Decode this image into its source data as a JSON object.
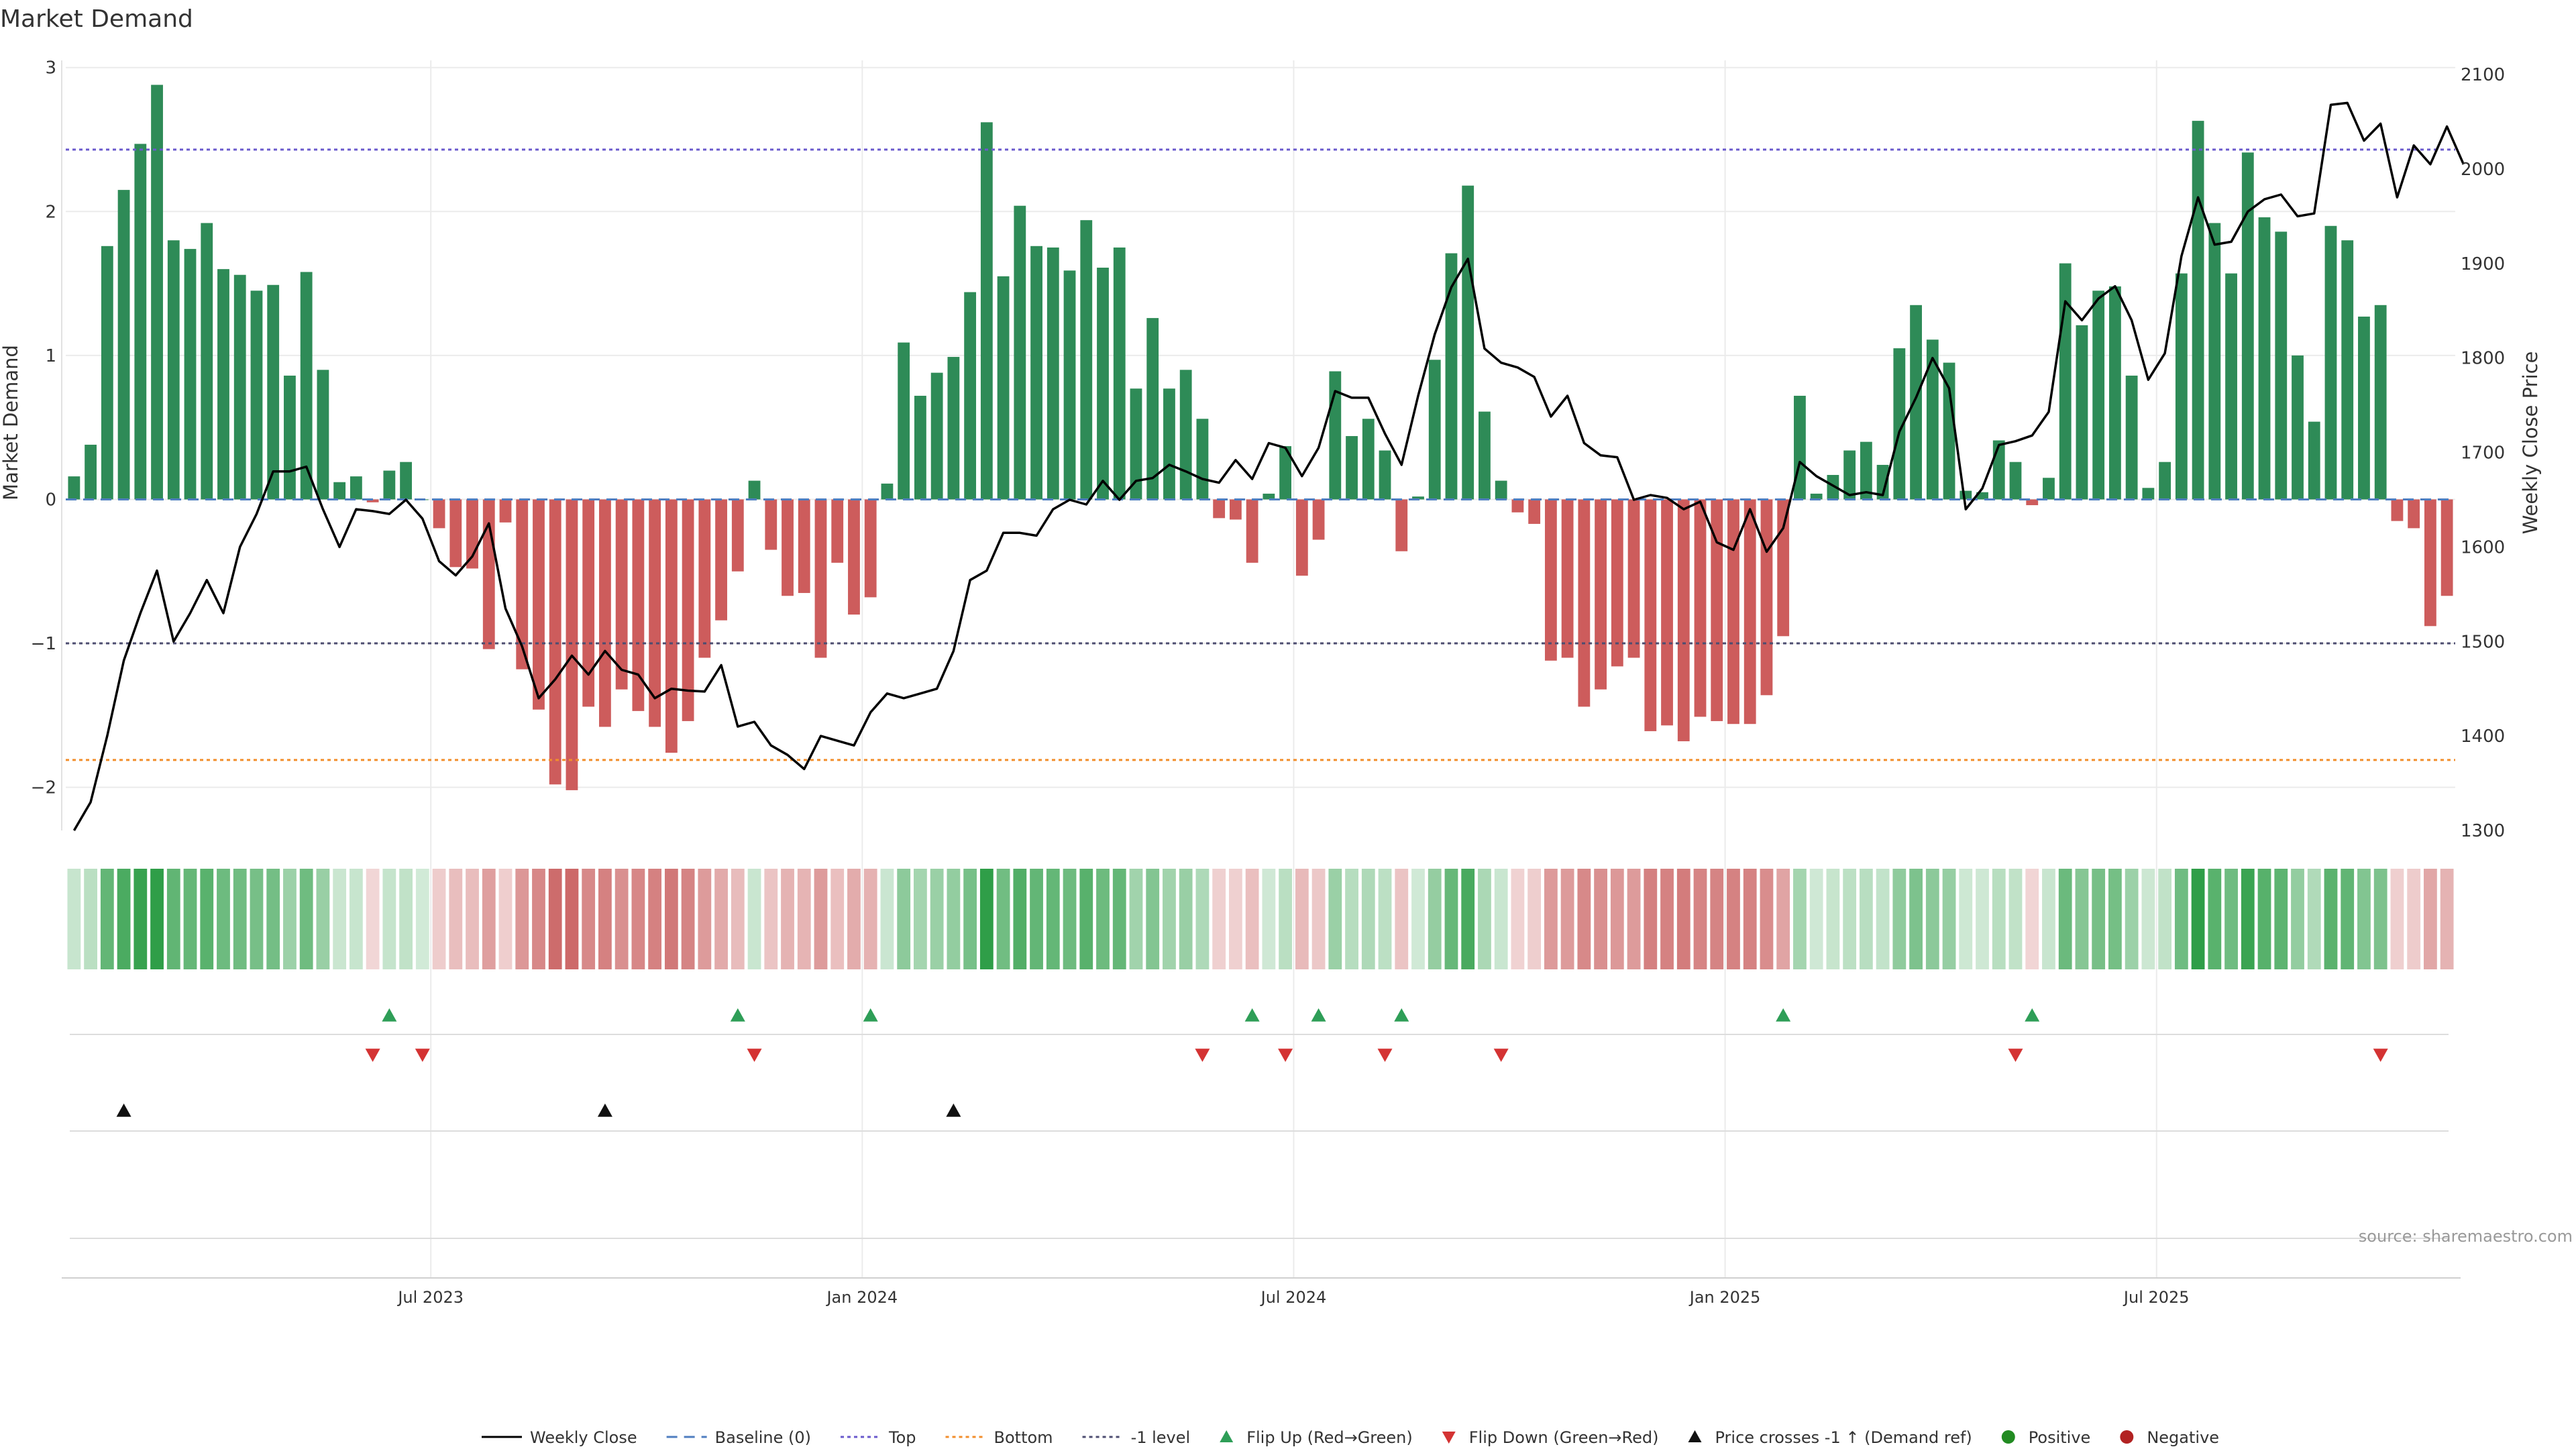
{
  "chart_data": {
    "type": "bar",
    "title": "Market Demand",
    "ylabel": "Market Demand",
    "y2label": "Weekly Close Price",
    "ylim": [
      -2.3,
      3.05
    ],
    "y2lim": [
      1300,
      2115
    ],
    "yticks": [
      {
        "v": -2,
        "label": "−2"
      },
      {
        "v": -1,
        "label": "−1"
      },
      {
        "v": 0,
        "label": "0"
      },
      {
        "v": 1,
        "label": "1"
      },
      {
        "v": 2,
        "label": "2"
      },
      {
        "v": 3,
        "label": "3"
      }
    ],
    "y2ticks": [
      1300,
      1400,
      1500,
      1600,
      1700,
      1800,
      1900,
      2000,
      2100
    ],
    "top_level": 2.43,
    "bottom_level": -1.81,
    "minus_one_level": -1,
    "n_weeks": 144,
    "xtick_labels": [
      {
        "i": 22,
        "label": "Jul 2023"
      },
      {
        "i": 48,
        "label": "Jan 2024"
      },
      {
        "i": 74,
        "label": "Jul 2024"
      },
      {
        "i": 100,
        "label": "Jan 2025"
      },
      {
        "i": 126,
        "label": "Jul 2025"
      }
    ],
    "series": [
      {
        "name": "Market Demand",
        "values": [
          0.16,
          0.38,
          1.76,
          2.15,
          2.47,
          2.88,
          1.8,
          1.74,
          1.92,
          1.6,
          1.56,
          1.45,
          1.49,
          0.86,
          1.58,
          0.9,
          0.12,
          0.16,
          -0.02,
          0.2,
          0.26,
          0,
          -0.2,
          -0.47,
          -0.48,
          -1.04,
          -0.16,
          -1.18,
          -1.46,
          -1.98,
          -2.02,
          -1.44,
          -1.58,
          -1.32,
          -1.47,
          -1.58,
          -1.76,
          -1.54,
          -1.1,
          -0.84,
          -0.5,
          0.13,
          -0.35,
          -0.67,
          -0.65,
          -1.1,
          -0.44,
          -0.8,
          -0.68,
          0.11,
          1.09,
          0.72,
          0.88,
          0.99,
          1.44,
          2.62,
          1.55,
          2.04,
          1.76,
          1.75,
          1.59,
          1.94,
          1.61,
          1.75,
          0.77,
          1.26,
          0.77,
          0.9,
          0.56,
          -0.13,
          -0.14,
          -0.44,
          0.04,
          0.37,
          -0.53,
          -0.28,
          0.89,
          0.44,
          0.56,
          0.34,
          -0.36,
          0.02,
          0.97,
          1.71,
          2.18,
          0.61,
          0.13,
          -0.09,
          -0.17,
          -1.12,
          -1.1,
          -1.44,
          -1.32,
          -1.16,
          -1.1,
          -1.61,
          -1.57,
          -1.68,
          -1.51,
          -1.54,
          -1.56,
          -1.56,
          -1.36,
          -0.95,
          0.72,
          0.04,
          0.17,
          0.34,
          0.4,
          0.24,
          1.05,
          1.35,
          1.11,
          0.95,
          0.06,
          0.05,
          0.41,
          0.26,
          -0.04,
          0.15,
          1.64,
          1.21,
          1.45,
          1.48,
          0.86,
          0.08,
          0.26,
          1.57,
          2.63,
          1.92,
          1.57,
          2.41,
          1.96,
          1.86,
          1,
          0.54,
          1.9,
          1.8,
          1.27,
          1.35,
          -0.15,
          -0.2,
          -0.88,
          -0.67
        ]
      },
      {
        "name": "Weekly Close",
        "values": [
          1300,
          1330,
          1400,
          1480,
          1530,
          1575,
          1500,
          1530,
          1565,
          1530,
          1600,
          1635,
          1680,
          1680,
          1685,
          1640,
          1600,
          1640,
          1638,
          1635,
          1650,
          1630,
          1585,
          1570,
          1590,
          1625,
          1535,
          1495,
          1440,
          1460,
          1485,
          1465,
          1490,
          1470,
          1465,
          1440,
          1450,
          1448,
          1447,
          1475,
          1410,
          1415,
          1390,
          1380,
          1365,
          1400,
          1395,
          1390,
          1425,
          1445,
          1440,
          1445,
          1450,
          1490,
          1565,
          1575,
          1615,
          1615,
          1612,
          1640,
          1650,
          1645,
          1670,
          1650,
          1670,
          1673,
          1687,
          1680,
          1672,
          1668,
          1692,
          1672,
          1710,
          1705,
          1675,
          1705,
          1765,
          1758,
          1758,
          1720,
          1687,
          1760,
          1825,
          1875,
          1905,
          1810,
          1795,
          1790,
          1780,
          1738,
          1760,
          1710,
          1697,
          1695,
          1650,
          1655,
          1652,
          1640,
          1648,
          1605,
          1597,
          1640,
          1595,
          1620,
          1690,
          1675,
          1665,
          1655,
          1658,
          1655,
          1722,
          1758,
          1800,
          1768,
          1640,
          1662,
          1708,
          1712,
          1718,
          1743,
          1860,
          1840,
          1863,
          1876,
          1840,
          1777,
          1805,
          1908,
          1970,
          1920,
          1923,
          1955,
          1968,
          1973,
          1950,
          1953,
          2068,
          2070,
          2030,
          2048,
          1970,
          2025,
          2005,
          2045,
          2005
        ]
      }
    ],
    "palette": {
      "pos_bar": "#2e8b57",
      "neg_bar": "#cd5c5c",
      "close_line": "#000000",
      "baseline": "#4f7ec0",
      "top": "#6a5acd",
      "bottom": "#f28e2b",
      "minus_one": "#4d4d70",
      "flip_up": "#2e9e57",
      "flip_down": "#d43333",
      "cross": "#111111",
      "positive_dot": "#228b22",
      "negative_dot": "#b22222",
      "grid": "#ebebeb"
    },
    "flip_up_weeks": [
      19,
      40,
      48,
      71,
      75,
      80,
      103,
      118
    ],
    "flip_down_weeks": [
      18,
      21,
      41,
      68,
      73,
      79,
      86,
      117,
      139
    ],
    "cross_weeks": [
      3,
      32,
      53
    ],
    "legend": [
      {
        "label": "Weekly Close",
        "kind": "line-solid"
      },
      {
        "label": "Baseline (0)",
        "kind": "line-dash"
      },
      {
        "label": "Top",
        "kind": "line-dot-top"
      },
      {
        "label": "Bottom",
        "kind": "line-dot-bottom"
      },
      {
        "label": "-1 level",
        "kind": "line-dot-minus"
      },
      {
        "label": "Flip Up (Red→Green)",
        "kind": "tri-up-green"
      },
      {
        "label": "Flip Down (Green→Red)",
        "kind": "tri-down-red"
      },
      {
        "label": "Price crosses -1 ↑ (Demand ref)",
        "kind": "tri-up-black"
      },
      {
        "label": "Positive",
        "kind": "dot-green"
      },
      {
        "label": "Negative",
        "kind": "dot-red"
      }
    ],
    "source": "source: sharemaestro.com"
  }
}
